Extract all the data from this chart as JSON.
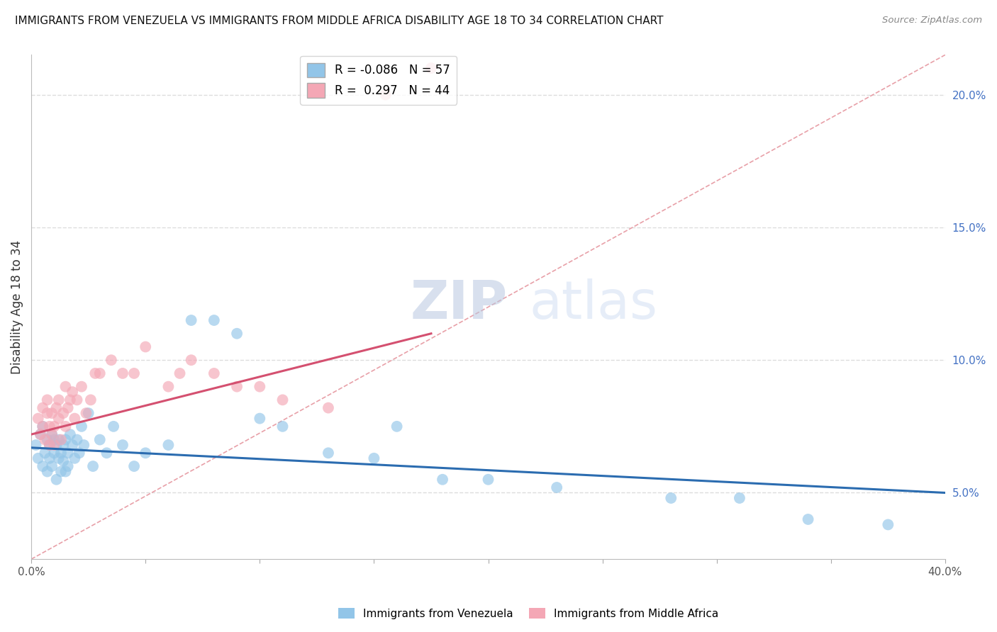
{
  "title": "IMMIGRANTS FROM VENEZUELA VS IMMIGRANTS FROM MIDDLE AFRICA DISABILITY AGE 18 TO 34 CORRELATION CHART",
  "source": "Source: ZipAtlas.com",
  "ylabel": "Disability Age 18 to 34",
  "xlim": [
    0.0,
    0.4
  ],
  "ylim": [
    0.025,
    0.215
  ],
  "ytick_labels_right": [
    "5.0%",
    "10.0%",
    "15.0%",
    "20.0%"
  ],
  "yticks_right": [
    0.05,
    0.1,
    0.15,
    0.2
  ],
  "R_venezuela": -0.086,
  "N_venezuela": 57,
  "R_middle_africa": 0.297,
  "N_middle_africa": 44,
  "color_venezuela": "#92C5E8",
  "color_middle_africa": "#F4A7B5",
  "trendline_color_venezuela": "#2B6CB0",
  "trendline_color_middle_africa": "#D45070",
  "diag_color": "#E8A0A8",
  "watermark_color": "#D0DCF0",
  "background_color": "#FFFFFF",
  "grid_color": "#DDDDDD",
  "venezuela_x": [
    0.002,
    0.003,
    0.004,
    0.005,
    0.005,
    0.006,
    0.007,
    0.007,
    0.008,
    0.008,
    0.009,
    0.009,
    0.01,
    0.01,
    0.011,
    0.011,
    0.012,
    0.012,
    0.013,
    0.013,
    0.014,
    0.014,
    0.015,
    0.015,
    0.016,
    0.016,
    0.017,
    0.018,
    0.019,
    0.02,
    0.021,
    0.022,
    0.023,
    0.025,
    0.027,
    0.03,
    0.033,
    0.036,
    0.04,
    0.045,
    0.05,
    0.06,
    0.07,
    0.08,
    0.09,
    0.1,
    0.11,
    0.13,
    0.15,
    0.16,
    0.18,
    0.2,
    0.23,
    0.28,
    0.31,
    0.34,
    0.375
  ],
  "venezuela_y": [
    0.068,
    0.063,
    0.072,
    0.06,
    0.075,
    0.065,
    0.058,
    0.07,
    0.063,
    0.068,
    0.06,
    0.072,
    0.065,
    0.07,
    0.055,
    0.068,
    0.063,
    0.07,
    0.058,
    0.065,
    0.062,
    0.068,
    0.058,
    0.07,
    0.065,
    0.06,
    0.072,
    0.068,
    0.063,
    0.07,
    0.065,
    0.075,
    0.068,
    0.08,
    0.06,
    0.07,
    0.065,
    0.075,
    0.068,
    0.06,
    0.065,
    0.068,
    0.115,
    0.115,
    0.11,
    0.078,
    0.075,
    0.065,
    0.063,
    0.075,
    0.055,
    0.055,
    0.052,
    0.048,
    0.048,
    0.04,
    0.038
  ],
  "middle_africa_x": [
    0.003,
    0.004,
    0.005,
    0.005,
    0.006,
    0.007,
    0.007,
    0.008,
    0.008,
    0.009,
    0.009,
    0.01,
    0.01,
    0.011,
    0.012,
    0.012,
    0.013,
    0.014,
    0.015,
    0.015,
    0.016,
    0.017,
    0.018,
    0.019,
    0.02,
    0.022,
    0.024,
    0.026,
    0.028,
    0.03,
    0.035,
    0.04,
    0.045,
    0.05,
    0.06,
    0.065,
    0.07,
    0.08,
    0.09,
    0.1,
    0.11,
    0.13,
    0.155,
    0.175
  ],
  "middle_africa_y": [
    0.078,
    0.072,
    0.075,
    0.082,
    0.07,
    0.08,
    0.085,
    0.068,
    0.075,
    0.08,
    0.072,
    0.068,
    0.075,
    0.082,
    0.078,
    0.085,
    0.07,
    0.08,
    0.075,
    0.09,
    0.082,
    0.085,
    0.088,
    0.078,
    0.085,
    0.09,
    0.08,
    0.085,
    0.095,
    0.095,
    0.1,
    0.095,
    0.095,
    0.105,
    0.09,
    0.095,
    0.1,
    0.095,
    0.09,
    0.09,
    0.085,
    0.082,
    0.2,
    0.21
  ],
  "ven_trend_x0": 0.0,
  "ven_trend_y0": 0.067,
  "ven_trend_x1": 0.4,
  "ven_trend_y1": 0.05,
  "ma_trend_x0": 0.0,
  "ma_trend_y0": 0.072,
  "ma_trend_x1": 0.175,
  "ma_trend_y1": 0.11
}
